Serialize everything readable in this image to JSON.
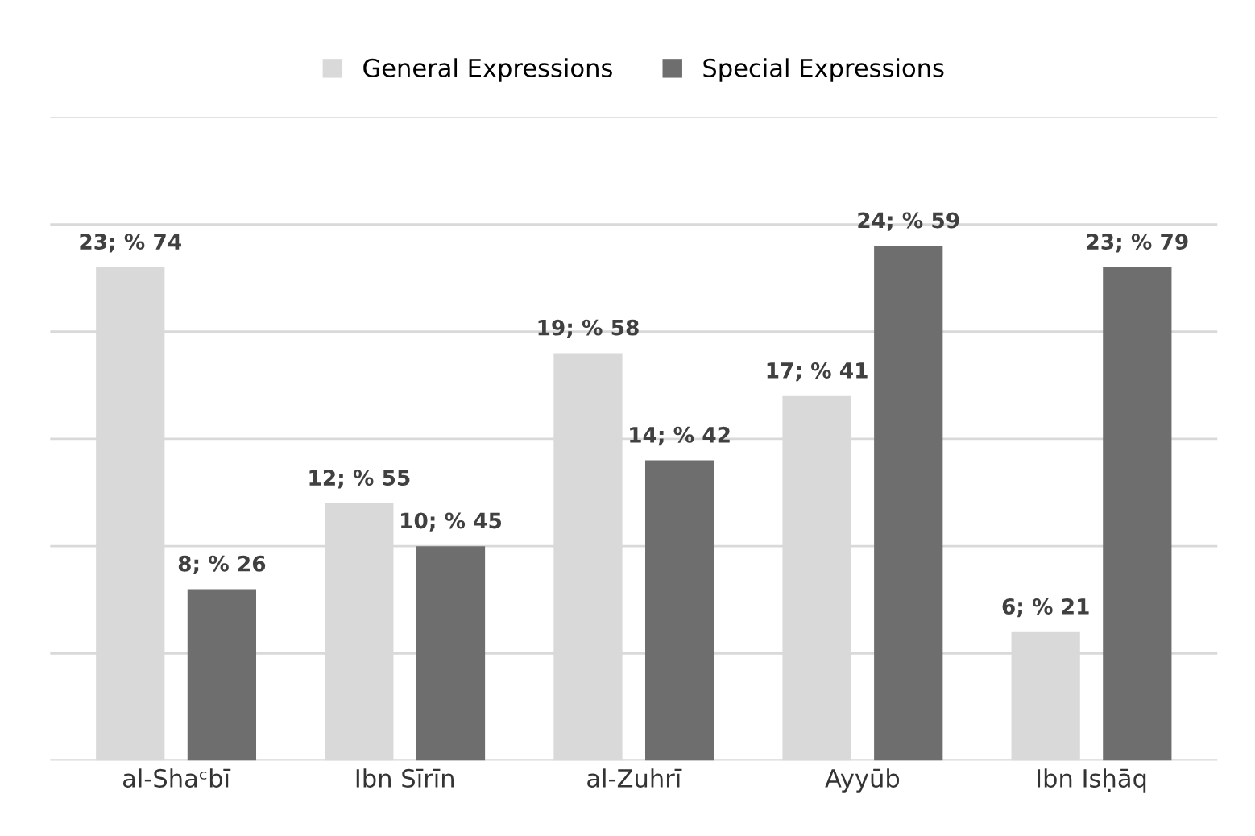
{
  "chart_data": {
    "type": "bar",
    "categories": [
      "al-Shaᶜbī",
      "Ibn Sīrīn",
      "al-Zuhrī",
      "Ayyūb",
      "Ibn Isḥāq"
    ],
    "series": [
      {
        "name": "General Expressions",
        "color": "#d9d9d9",
        "values": [
          23,
          12,
          19,
          17,
          6
        ],
        "value_labels": [
          "23; % 74",
          "12; % 55",
          "19; % 58",
          "17; % 41",
          "6; % 21"
        ]
      },
      {
        "name": "Special Expressions",
        "color": "#6e6e6e",
        "values": [
          8,
          10,
          14,
          24,
          23
        ],
        "value_labels": [
          "8; % 26",
          "10; % 45",
          "14; % 42",
          "24; % 59",
          "23; % 79"
        ]
      }
    ],
    "ylim": [
      0,
      30
    ],
    "yticks": [
      {
        "value": 0,
        "label": null
      },
      {
        "value": 5,
        "label": null
      },
      {
        "value": 10,
        "label": null
      },
      {
        "value": 15,
        "label": null
      },
      {
        "value": 20,
        "label": null
      },
      {
        "value": 25,
        "label": null
      },
      {
        "value": 30,
        "label": null
      }
    ],
    "tick_labels": "x",
    "grid": "y",
    "legend": "top"
  }
}
